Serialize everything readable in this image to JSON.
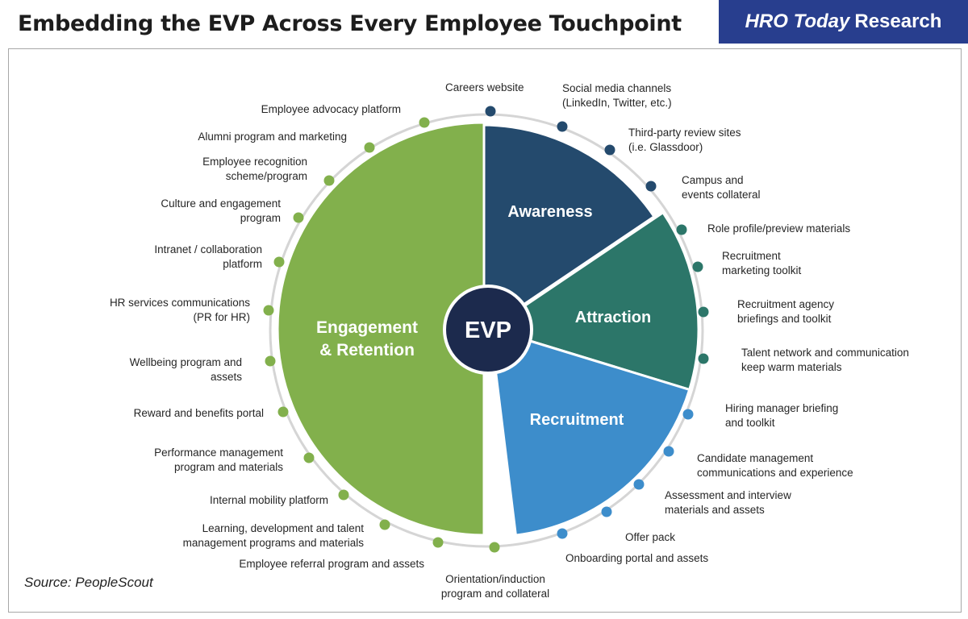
{
  "header": {
    "title": "Embedding the EVP Across Every Employee Touchpoint",
    "brand_em": "HRO Today",
    "brand_rest": "Research"
  },
  "footer": {
    "source": "Source: PeopleScout"
  },
  "colors": {
    "awareness": "#244a6d",
    "attraction": "#2c7669",
    "recruitment": "#3d8dcb",
    "engagement": "#82b04c",
    "center": "#1c2a4d",
    "ring": "#d5d5d5"
  },
  "center_label": "EVP",
  "segments": [
    {
      "id": "awareness",
      "lines": [
        "Awareness"
      ]
    },
    {
      "id": "attraction",
      "lines": [
        "Attraction"
      ]
    },
    {
      "id": "recruitment",
      "lines": [
        "Recruitment"
      ]
    },
    {
      "id": "engagement",
      "lines": [
        "Engagement",
        "& Retention"
      ]
    }
  ],
  "touchpoints": [
    {
      "segment": "awareness",
      "lines": [
        "Careers website"
      ]
    },
    {
      "segment": "awareness",
      "lines": [
        "Social media channels",
        "(LinkedIn, Twitter, etc.)"
      ]
    },
    {
      "segment": "awareness",
      "lines": [
        "Third-party review sites",
        "(i.e. Glassdoor)"
      ]
    },
    {
      "segment": "awareness",
      "lines": [
        "Campus and",
        "events collateral"
      ]
    },
    {
      "segment": "attraction",
      "lines": [
        "Role profile/preview materials"
      ]
    },
    {
      "segment": "attraction",
      "lines": [
        "Recruitment",
        "marketing toolkit"
      ]
    },
    {
      "segment": "attraction",
      "lines": [
        "Recruitment agency",
        "briefings and toolkit"
      ]
    },
    {
      "segment": "attraction",
      "lines": [
        "Talent network and communication",
        "keep warm materials"
      ]
    },
    {
      "segment": "recruitment",
      "lines": [
        "Hiring manager briefing",
        "and toolkit"
      ]
    },
    {
      "segment": "recruitment",
      "lines": [
        "Candidate management",
        "communications and experience"
      ]
    },
    {
      "segment": "recruitment",
      "lines": [
        "Assessment and interview",
        "materials and assets"
      ]
    },
    {
      "segment": "recruitment",
      "lines": [
        "Offer pack"
      ]
    },
    {
      "segment": "recruitment",
      "lines": [
        "Onboarding portal and assets"
      ]
    },
    {
      "segment": "engagement",
      "lines": [
        "Orientation/induction",
        "program and collateral"
      ]
    },
    {
      "segment": "engagement",
      "lines": [
        "Employee referral program and assets"
      ]
    },
    {
      "segment": "engagement",
      "lines": [
        "Learning, development and talent",
        "management programs and materials"
      ]
    },
    {
      "segment": "engagement",
      "lines": [
        "Internal mobility platform"
      ]
    },
    {
      "segment": "engagement",
      "lines": [
        "Performance management",
        "program and materials"
      ]
    },
    {
      "segment": "engagement",
      "lines": [
        "Reward and benefits portal"
      ]
    },
    {
      "segment": "engagement",
      "lines": [
        "Wellbeing program and",
        "assets"
      ]
    },
    {
      "segment": "engagement",
      "lines": [
        "HR  services communications",
        "(PR for HR)"
      ]
    },
    {
      "segment": "engagement",
      "lines": [
        "Intranet / collaboration",
        "platform"
      ]
    },
    {
      "segment": "engagement",
      "lines": [
        "Culture and engagement",
        "program"
      ]
    },
    {
      "segment": "engagement",
      "lines": [
        "Employee recognition",
        "scheme/program"
      ]
    },
    {
      "segment": "engagement",
      "lines": [
        "Alumni program and marketing"
      ]
    },
    {
      "segment": "engagement",
      "lines": [
        "Employee advocacy  platform"
      ]
    }
  ]
}
